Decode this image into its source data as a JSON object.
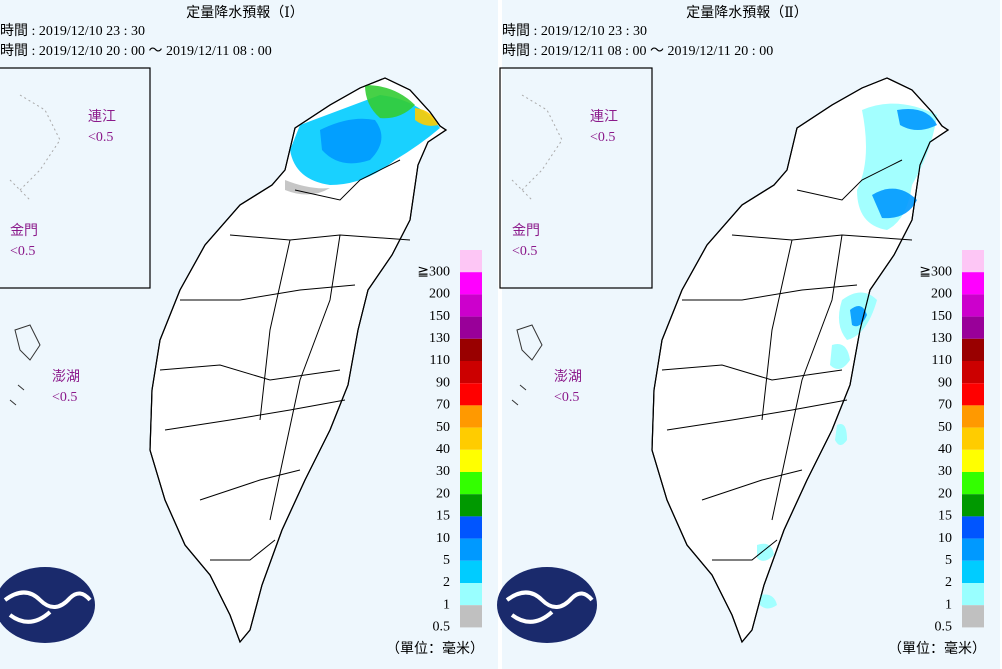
{
  "panels": [
    {
      "title": "定量降水預報（Ⅰ）",
      "issue_time": "時間 : 2019/12/10 23 : 30",
      "valid_time": "時間 : 2019/12/10 20 : 00 ～ 2019/12/11 08 : 00",
      "islands": [
        {
          "name": "連江",
          "value": "<0.5"
        },
        {
          "name": "金門",
          "value": "<0.5"
        },
        {
          "name": "澎湖",
          "value": "<0.5"
        }
      ]
    },
    {
      "title": "定量降水預報（Ⅱ）",
      "issue_time": "時間 : 2019/12/10 23 : 30",
      "valid_time": "時間 : 2019/12/11 08 : 00 ～ 2019/12/11 20 : 00",
      "islands": [
        {
          "name": "連江",
          "value": "<0.5"
        },
        {
          "name": "金門",
          "value": "<0.5"
        },
        {
          "name": "澎湖",
          "value": "<0.5"
        }
      ]
    }
  ],
  "legend": {
    "labels": [
      "≧300",
      "200",
      "150",
      "130",
      "110",
      "90",
      "70",
      "50",
      "40",
      "30",
      "20",
      "15",
      "10",
      "5",
      "2",
      "1",
      "0.5"
    ],
    "colors": [
      "#fdc6f5",
      "#ff00ff",
      "#cc00cc",
      "#990099",
      "#990000",
      "#cc0000",
      "#ff0000",
      "#ff9900",
      "#ffcc00",
      "#ffff00",
      "#33ff00",
      "#009900",
      "#0055ff",
      "#0099ff",
      "#00ccff",
      "#99ffff",
      "#c0c0c0"
    ]
  },
  "unit": "（單位：毫米）"
}
